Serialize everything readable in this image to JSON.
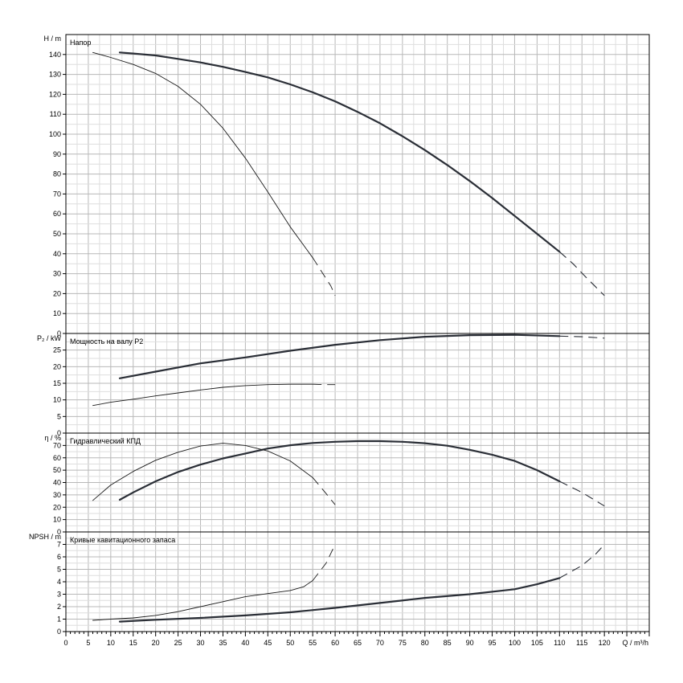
{
  "chart_data": {
    "type": "line",
    "x_axis": {
      "label": "Q / m³/h",
      "range": [
        0,
        130
      ],
      "ticks": [
        0,
        5,
        10,
        15,
        20,
        25,
        30,
        35,
        40,
        45,
        50,
        55,
        60,
        65,
        70,
        75,
        80,
        85,
        90,
        95,
        100,
        105,
        110,
        115,
        120
      ]
    },
    "grid": true,
    "panels": [
      {
        "id": "head",
        "title": "Напор",
        "ylabel": "H / m",
        "ylim": [
          0,
          150
        ],
        "ytick_step": 10,
        "series": [
          {
            "style": "thick",
            "solid": [
              [
                12,
                141
              ],
              [
                15,
                140.5
              ],
              [
                20,
                139.5
              ],
              [
                25,
                137.8
              ],
              [
                30,
                136
              ],
              [
                35,
                133.8
              ],
              [
                40,
                131.2
              ],
              [
                45,
                128.5
              ],
              [
                50,
                125
              ],
              [
                55,
                121
              ],
              [
                60,
                116.5
              ],
              [
                65,
                111.2
              ],
              [
                70,
                105.5
              ],
              [
                75,
                99
              ],
              [
                80,
                92
              ],
              [
                85,
                84.5
              ],
              [
                90,
                76.5
              ],
              [
                95,
                68
              ],
              [
                100,
                59
              ],
              [
                105,
                50
              ],
              [
                110,
                41
              ]
            ],
            "dashed": [
              [
                110,
                41
              ],
              [
                113,
                35
              ],
              [
                116,
                28
              ],
              [
                118,
                23.5
              ],
              [
                120,
                19
              ]
            ]
          },
          {
            "style": "thin",
            "solid": [
              [
                6,
                141
              ],
              [
                10,
                138.5
              ],
              [
                15,
                135
              ],
              [
                20,
                130.5
              ],
              [
                25,
                124
              ],
              [
                30,
                115
              ],
              [
                35,
                103
              ],
              [
                40,
                88
              ],
              [
                45,
                71
              ],
              [
                50,
                53.5
              ],
              [
                55,
                38
              ]
            ],
            "dashed": [
              [
                55,
                38
              ],
              [
                57,
                31
              ],
              [
                59,
                24
              ],
              [
                60,
                19
              ]
            ]
          }
        ]
      },
      {
        "id": "power",
        "title": "Мощность на валу P2",
        "ylabel": "P₂ / kW",
        "ylim": [
          0,
          30
        ],
        "ytick_step": 5,
        "series": [
          {
            "style": "thick",
            "solid": [
              [
                12,
                16.5
              ],
              [
                20,
                18.5
              ],
              [
                30,
                21
              ],
              [
                40,
                22.8
              ],
              [
                50,
                24.8
              ],
              [
                60,
                26.6
              ],
              [
                70,
                28
              ],
              [
                80,
                29
              ],
              [
                90,
                29.5
              ],
              [
                100,
                29.6
              ],
              [
                110,
                29.2
              ]
            ],
            "dashed": [
              [
                110,
                29.2
              ],
              [
                115,
                29
              ],
              [
                120,
                28.6
              ]
            ]
          },
          {
            "style": "thin",
            "solid": [
              [
                6,
                8.3
              ],
              [
                10,
                9.3
              ],
              [
                15,
                10.2
              ],
              [
                20,
                11.2
              ],
              [
                25,
                12.1
              ],
              [
                30,
                13
              ],
              [
                35,
                13.8
              ],
              [
                40,
                14.3
              ],
              [
                45,
                14.6
              ],
              [
                50,
                14.7
              ],
              [
                55,
                14.7
              ]
            ],
            "dashed": [
              [
                55,
                14.7
              ],
              [
                58,
                14.6
              ],
              [
                60,
                14.6
              ]
            ]
          }
        ]
      },
      {
        "id": "efficiency",
        "title": "Гидравлический КПД",
        "ylabel": "η / %",
        "ylim": [
          0,
          80
        ],
        "ytick_step": 10,
        "series": [
          {
            "style": "thick",
            "solid": [
              [
                12,
                26
              ],
              [
                15,
                32
              ],
              [
                20,
                41
              ],
              [
                25,
                48.5
              ],
              [
                30,
                54.5
              ],
              [
                35,
                59.5
              ],
              [
                40,
                63.5
              ],
              [
                45,
                67.5
              ],
              [
                50,
                70.2
              ],
              [
                55,
                72
              ],
              [
                60,
                73
              ],
              [
                65,
                73.5
              ],
              [
                70,
                73.5
              ],
              [
                75,
                73
              ],
              [
                80,
                71.8
              ],
              [
                85,
                69.8
              ],
              [
                90,
                66.5
              ],
              [
                95,
                62.5
              ],
              [
                100,
                57.5
              ],
              [
                105,
                50
              ],
              [
                110,
                41
              ]
            ],
            "dashed": [
              [
                110,
                41
              ],
              [
                115,
                32
              ],
              [
                120,
                21
              ]
            ]
          },
          {
            "style": "thin",
            "solid": [
              [
                6,
                25.5
              ],
              [
                10,
                38
              ],
              [
                15,
                49
              ],
              [
                20,
                58
              ],
              [
                25,
                64.5
              ],
              [
                30,
                69.5
              ],
              [
                35,
                71.8
              ],
              [
                40,
                70
              ],
              [
                45,
                65.5
              ],
              [
                50,
                57.5
              ],
              [
                55,
                44
              ]
            ],
            "dashed": [
              [
                55,
                44
              ],
              [
                58,
                31
              ],
              [
                60,
                22
              ]
            ]
          }
        ]
      },
      {
        "id": "npsh",
        "title": "Кривые кавитационного запаса",
        "ylabel": "NPSH / m",
        "ylim": [
          0,
          8
        ],
        "ytick_step": 1,
        "series": [
          {
            "style": "thick",
            "solid": [
              [
                12,
                0.8
              ],
              [
                20,
                0.95
              ],
              [
                30,
                1.1
              ],
              [
                40,
                1.3
              ],
              [
                50,
                1.55
              ],
              [
                60,
                1.9
              ],
              [
                70,
                2.3
              ],
              [
                80,
                2.7
              ],
              [
                90,
                3
              ],
              [
                100,
                3.4
              ],
              [
                105,
                3.8
              ],
              [
                110,
                4.3
              ]
            ],
            "dashed": [
              [
                110,
                4.3
              ],
              [
                115,
                5.3
              ],
              [
                118,
                6.2
              ],
              [
                120,
                7
              ]
            ]
          },
          {
            "style": "thin",
            "solid": [
              [
                6,
                0.9
              ],
              [
                10,
                1
              ],
              [
                15,
                1.1
              ],
              [
                20,
                1.3
              ],
              [
                25,
                1.6
              ],
              [
                30,
                2
              ],
              [
                35,
                2.4
              ],
              [
                40,
                2.8
              ],
              [
                45,
                3.05
              ],
              [
                50,
                3.3
              ],
              [
                53,
                3.6
              ],
              [
                55,
                4.1
              ]
            ],
            "dashed": [
              [
                55,
                4.1
              ],
              [
                58,
                5.5
              ],
              [
                60,
                7
              ]
            ]
          }
        ]
      }
    ]
  }
}
